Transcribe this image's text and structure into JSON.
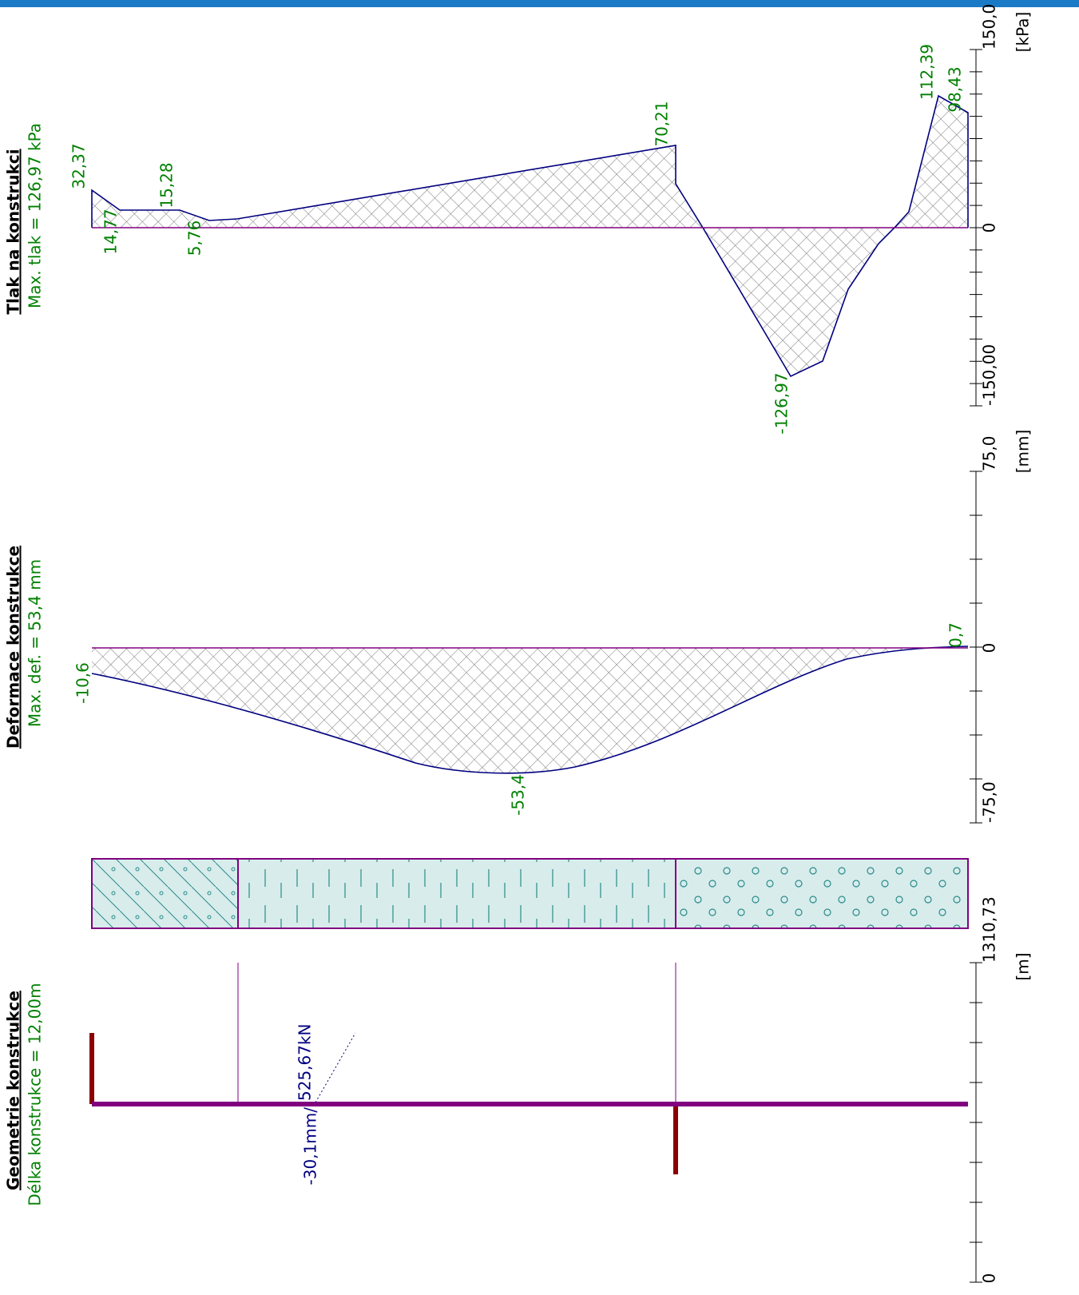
{
  "panels": [
    {
      "title": "Geometrie konstrukce",
      "subtitle": "Délka konstrukce = 12,00m",
      "labels": [
        "525,67kN",
        "-30,1mm/"
      ],
      "axis": {
        "top": "1310,73",
        "unit": "[m]",
        "bottom": "0"
      }
    },
    {
      "title": "Deformace konstrukce",
      "subtitle": "Max. def. = 53,4 mm",
      "labels": [
        "-10,6",
        "-53,4",
        "0,7"
      ],
      "axis": {
        "top": "75,0",
        "unit": "[mm]",
        "zero": "0",
        "bottom": "-75,0"
      }
    },
    {
      "title": "Tlak na konstrukci",
      "subtitle": "Max. tlak = 126,97 kPa",
      "labels": [
        "32,37",
        "14,77",
        "15,28",
        "5,76",
        "70,21",
        "-126,97",
        "112,39",
        "98,43"
      ],
      "axis": {
        "top": "150,0",
        "unit": "[kPa]",
        "zero": "0",
        "bottom": "-150,00"
      }
    }
  ]
}
